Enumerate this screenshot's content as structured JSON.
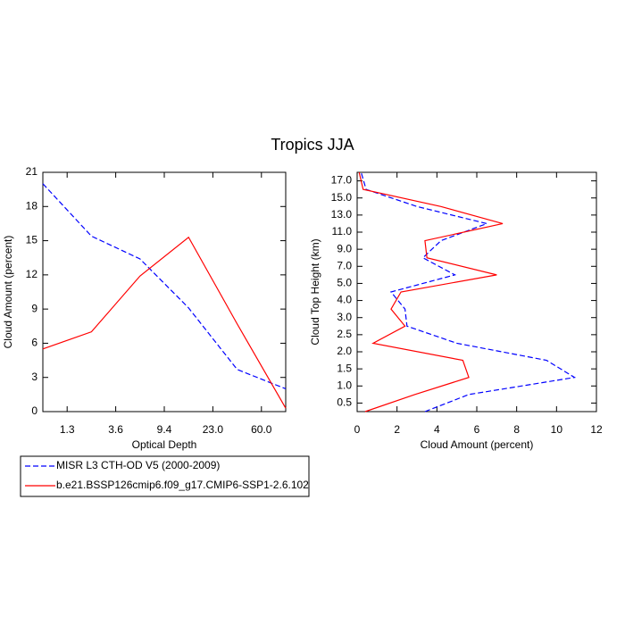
{
  "title": "Tropics JJA",
  "chart_data": [
    {
      "type": "line",
      "orientation": "vertical",
      "x_label": "Optical Depth",
      "y_label": "Cloud Amount (percent)",
      "x": [
        0,
        1,
        2,
        3,
        4,
        5
      ],
      "xlim": [
        0,
        5
      ],
      "xticks": [
        {
          "value": 0.5,
          "label": "1.3"
        },
        {
          "value": 1.5,
          "label": "3.6"
        },
        {
          "value": 2.5,
          "label": "9.4"
        },
        {
          "value": 3.5,
          "label": "23.0"
        },
        {
          "value": 4.5,
          "label": "60.0"
        }
      ],
      "ylim": [
        0,
        21
      ],
      "yticks": [
        0,
        3,
        6,
        9,
        12,
        15,
        18,
        21
      ],
      "series": [
        {
          "name": "MISR L3 CTH-OD V5 (2000-2009)",
          "color": "#0000ff",
          "dashed": true,
          "values": [
            20.0,
            15.4,
            13.4,
            9.1,
            3.7,
            2.0
          ]
        },
        {
          "name": "b.e21.BSSP126cmip6.f09_g17.CMIP6-SSP1-2.6.102",
          "color": "#ff0000",
          "dashed": false,
          "values": [
            5.5,
            7.0,
            11.9,
            15.3,
            7.7,
            0.3
          ]
        }
      ]
    },
    {
      "type": "line",
      "orientation": "horizontal",
      "x_label": "Cloud Amount (percent)",
      "y_label": "Cloud Top Height (km)",
      "y": [
        -0.5,
        0.5,
        1.5,
        2.5,
        3.5,
        4.5,
        5.5,
        6.5,
        7.5,
        8.5,
        9.5,
        10.5,
        11.5,
        12.5,
        13.5
      ],
      "xlim": [
        0,
        12
      ],
      "xticks": [
        0,
        2,
        4,
        6,
        8,
        10,
        12
      ],
      "ylim": [
        -0.5,
        13.5
      ],
      "yticks": [
        {
          "value": 0,
          "label": "0.5"
        },
        {
          "value": 1,
          "label": "1.0"
        },
        {
          "value": 2,
          "label": "1.5"
        },
        {
          "value": 3,
          "label": "2.0"
        },
        {
          "value": 4,
          "label": "2.5"
        },
        {
          "value": 5,
          "label": "3.0"
        },
        {
          "value": 6,
          "label": "4.0"
        },
        {
          "value": 7,
          "label": "5.0"
        },
        {
          "value": 8,
          "label": "7.0"
        },
        {
          "value": 9,
          "label": "9.0"
        },
        {
          "value": 10,
          "label": "11.0"
        },
        {
          "value": 11,
          "label": "13.0"
        },
        {
          "value": 12,
          "label": "15.0"
        },
        {
          "value": 13,
          "label": "17.0"
        }
      ],
      "series": [
        {
          "color": "#0000ff",
          "dashed": true,
          "values": [
            3.4,
            5.6,
            10.9,
            9.5,
            5.0,
            2.5,
            2.4,
            1.7,
            4.9,
            3.3,
            4.2,
            6.5,
            3.0,
            0.45,
            0.2
          ]
        },
        {
          "color": "#ff0000",
          "dashed": false,
          "values": [
            0.4,
            2.9,
            5.6,
            5.3,
            0.8,
            2.4,
            1.7,
            2.2,
            7.0,
            3.5,
            3.4,
            7.3,
            4.2,
            0.3,
            0.1
          ]
        }
      ]
    }
  ]
}
